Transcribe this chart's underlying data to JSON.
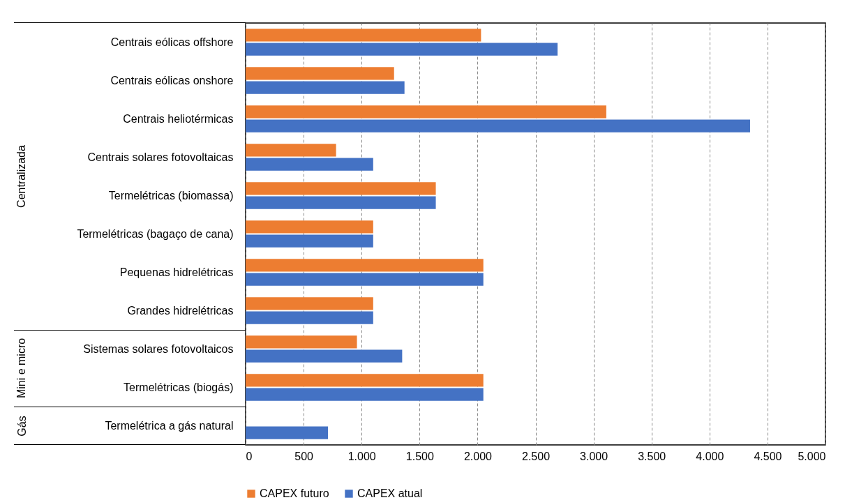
{
  "chart_data": {
    "type": "bar",
    "orientation": "horizontal",
    "categories": [
      "Centrais eólicas offshore",
      "Centrais eólicas onshore",
      "Centrais heliotérmicas ",
      "Centrais solares fotovoltaicas",
      "Termelétricas (biomassa)",
      "Termelétricas (bagaço de cana)",
      "Pequenas hidrelétricas",
      "Grandes hidrelétricas",
      "Sistemas solares fotovoltaicos",
      "Termelétricas (biogás)",
      "Termelétrica a gás natural"
    ],
    "series": [
      {
        "name": "CAPEX futuro",
        "color": "#ed7d31",
        "values": [
          2030,
          1280,
          3110,
          780,
          1640,
          1100,
          2050,
          1100,
          960,
          2050,
          null
        ]
      },
      {
        "name": "CAPEX atual",
        "color": "#4472c4",
        "values": [
          2690,
          1370,
          4350,
          1100,
          1640,
          1100,
          2050,
          1100,
          1350,
          2050,
          710
        ]
      }
    ],
    "xlim": [
      0,
      5000
    ],
    "xticks": [
      {
        "value": 0,
        "label": "0"
      },
      {
        "value": 500,
        "label": "500"
      },
      {
        "value": 1000,
        "label": "1.000"
      },
      {
        "value": 1500,
        "label": "1.500"
      },
      {
        "value": 2000,
        "label": "2.000"
      },
      {
        "value": 2500,
        "label": "2.500"
      },
      {
        "value": 3000,
        "label": "3.000"
      },
      {
        "value": 3500,
        "label": "3.500"
      },
      {
        "value": 4000,
        "label": "4.000"
      },
      {
        "value": 4500,
        "label": "4.500"
      },
      {
        "value": 5000,
        "label": "5.000"
      }
    ],
    "grid": "x",
    "legend": "bottom",
    "annotations": [
      "Centralizada",
      "Mini e micro",
      "Gás"
    ]
  }
}
